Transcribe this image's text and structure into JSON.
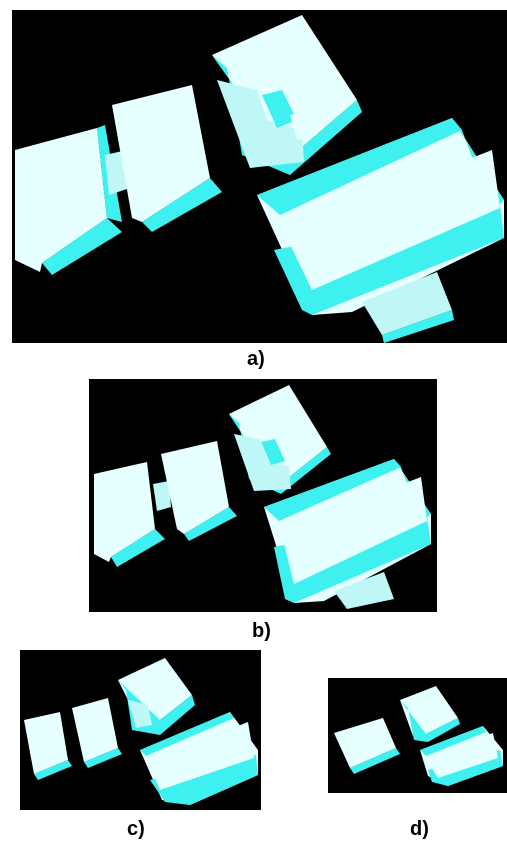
{
  "colors": {
    "background": "#000000",
    "block_light": "#e6ffff",
    "block_mid": "#bff7f7",
    "block_dark": "#3ff0f0",
    "caption": "#000000"
  },
  "panels": [
    {
      "id": "a",
      "caption": "a)"
    },
    {
      "id": "b",
      "caption": "b)"
    },
    {
      "id": "c",
      "caption": "c)"
    },
    {
      "id": "d",
      "caption": "d)"
    }
  ]
}
